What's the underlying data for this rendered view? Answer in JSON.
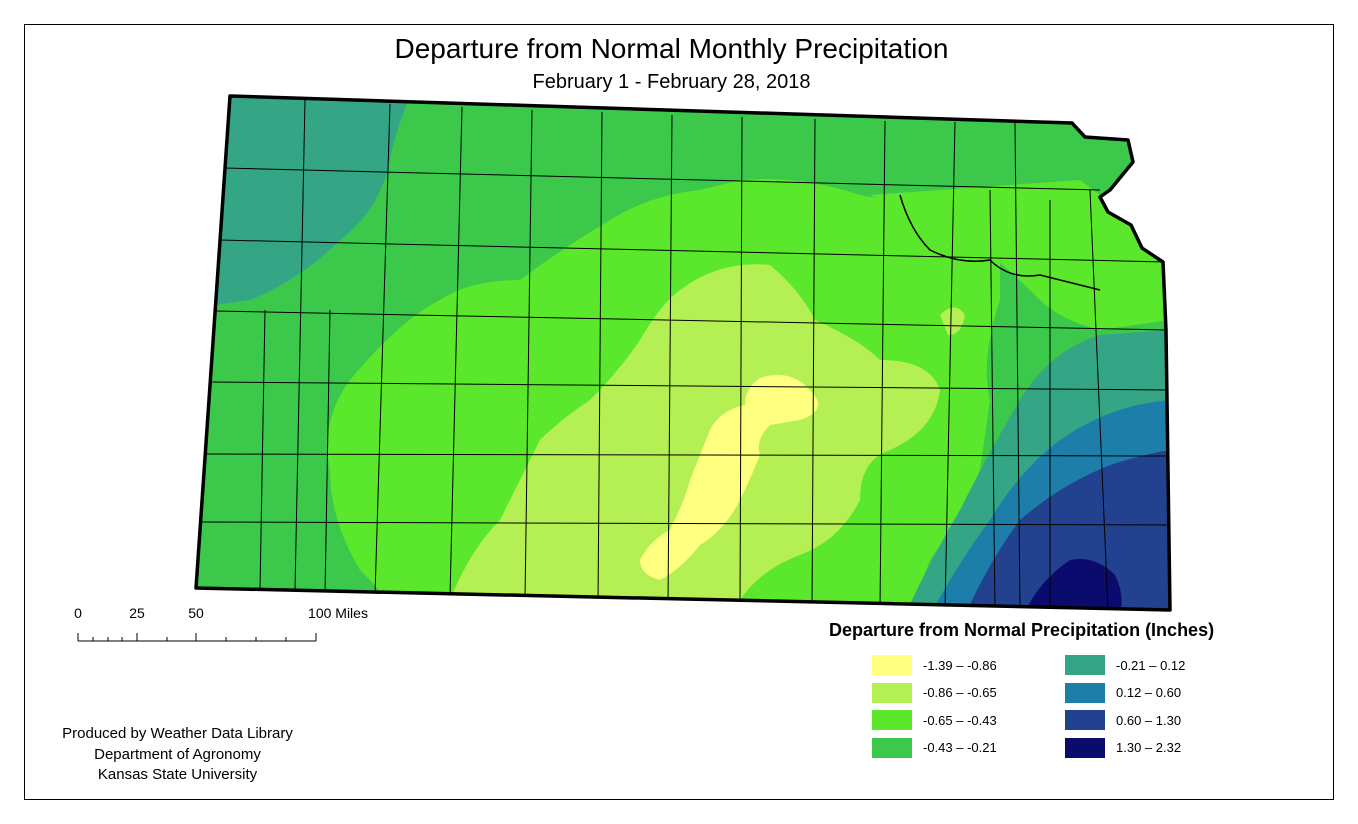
{
  "title": "Departure from Normal Monthly Precipitation",
  "subtitle": "February 1 - February 28, 2018",
  "scale_bar": {
    "labels": [
      "0",
      "25",
      "50",
      "100 Miles"
    ],
    "unit": "Miles",
    "values": [
      0,
      25,
      50,
      100
    ]
  },
  "legend": {
    "title": "Departure from Normal Precipitation (Inches)",
    "items": [
      {
        "label": "-1.39 – -0.86",
        "color": "#ffff80"
      },
      {
        "label": "-0.86 – -0.65",
        "color": "#b4f053"
      },
      {
        "label": "-0.65 – -0.43",
        "color": "#5be72b"
      },
      {
        "label": "-0.43 – -0.21",
        "color": "#3cc84b"
      },
      {
        "label": "-0.21 – 0.12",
        "color": "#34a686"
      },
      {
        "label": "0.12 – 0.60",
        "color": "#1d7fa9"
      },
      {
        "label": "0.60 – 1.30",
        "color": "#22428f"
      },
      {
        "label": "1.30 – 2.32",
        "color": "#0b0b6e"
      }
    ]
  },
  "credits": {
    "line1": "Produced by Weather Data Library",
    "line2": "Department of Agronomy",
    "line3": "Kansas State University"
  }
}
